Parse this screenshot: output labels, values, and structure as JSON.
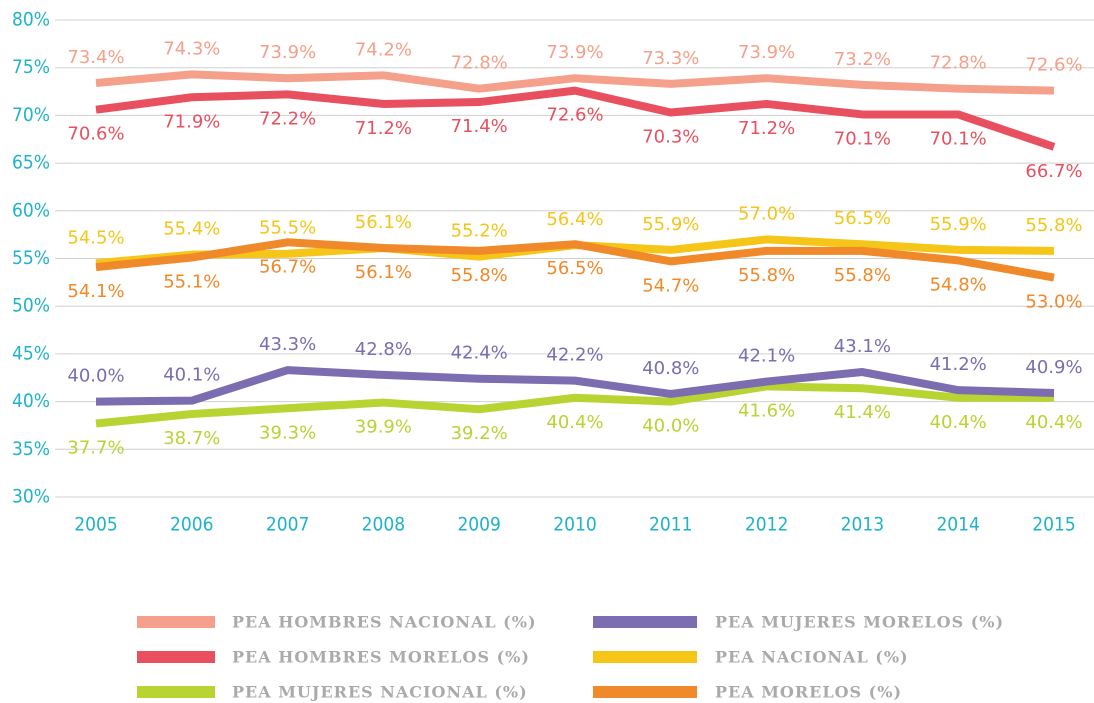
{
  "chart_data": {
    "type": "line",
    "categories": [
      "2005",
      "2006",
      "2007",
      "2008",
      "2009",
      "2010",
      "2011",
      "2012",
      "2013",
      "2014",
      "2015"
    ],
    "series": [
      {
        "name": "PEA HOMBRES NACIONAL (%)",
        "color": "#f4a08a",
        "values": [
          73.4,
          74.3,
          73.9,
          74.2,
          72.8,
          73.9,
          73.3,
          73.9,
          73.2,
          72.8,
          72.6
        ],
        "value_labels": [
          "73.4%",
          "74.3%",
          "73.9%",
          "74.2%",
          "72.8%",
          "73.9%",
          "73.3%",
          "73.9%",
          "73.2%",
          "72.8%",
          "72.6%"
        ]
      },
      {
        "name": "PEA HOMBRES MORELOS (%)",
        "color": "#e8505f",
        "values": [
          70.6,
          71.9,
          72.2,
          71.2,
          71.4,
          72.6,
          70.3,
          71.2,
          70.1,
          70.1,
          66.7
        ],
        "value_labels": [
          "70.6%",
          "71.9%",
          "72.2%",
          "71.2%",
          "71.4%",
          "72.6%",
          "70.3%",
          "71.2%",
          "70.1%",
          "70.1%",
          "66.7%"
        ]
      },
      {
        "name": "PEA MUJERES NACIONAL (%)",
        "color": "#b8d433",
        "values": [
          37.7,
          38.7,
          39.3,
          39.9,
          39.2,
          40.4,
          40.0,
          41.6,
          41.4,
          40.4,
          40.4
        ],
        "value_labels": [
          "37.7%",
          "38.7%",
          "39.3%",
          "39.9%",
          "39.2%",
          "40.4%",
          "40.0%",
          "41.6%",
          "41.4%",
          "40.4%",
          "40.4%"
        ]
      },
      {
        "name": "PEA MUJERES MORELOS (%)",
        "color": "#7b6db0",
        "values": [
          40.0,
          40.1,
          43.3,
          42.8,
          42.4,
          42.2,
          40.8,
          42.1,
          43.1,
          41.2,
          40.9
        ],
        "value_labels": [
          "40.0%",
          "40.1%",
          "43.3%",
          "42.8%",
          "42.4%",
          "42.2%",
          "40.8%",
          "42.1%",
          "43.1%",
          "41.2%",
          "40.9%"
        ]
      },
      {
        "name": "PEA NACIONAL (%)",
        "color": "#f5c518",
        "values": [
          54.5,
          55.4,
          55.5,
          56.1,
          55.2,
          56.4,
          55.9,
          57.0,
          56.5,
          55.9,
          55.8
        ],
        "value_labels": [
          "54.5%",
          "55.4%",
          "55.5%",
          "56.1%",
          "55.2%",
          "56.4%",
          "55.9%",
          "57.0%",
          "56.5%",
          "55.9%",
          "55.8%"
        ]
      },
      {
        "name": "PEA MORELOS (%)",
        "color": "#f0892a",
        "values": [
          54.1,
          55.1,
          56.7,
          56.1,
          55.8,
          56.5,
          54.7,
          55.8,
          55.8,
          54.8,
          53.0
        ],
        "value_labels": [
          "54.1%",
          "55.1%",
          "56.7%",
          "56.1%",
          "55.8%",
          "56.5%",
          "54.7%",
          "55.8%",
          "55.8%",
          "54.8%",
          "53.0%"
        ]
      }
    ],
    "ylim": [
      30,
      80
    ],
    "yticks": [
      {
        "value": 30,
        "label": "30%"
      },
      {
        "value": 35,
        "label": "35%"
      },
      {
        "value": 40,
        "label": "40%"
      },
      {
        "value": 45,
        "label": "45%"
      },
      {
        "value": 50,
        "label": "50%"
      },
      {
        "value": 55,
        "label": "55%"
      },
      {
        "value": 60,
        "label": "60%"
      },
      {
        "value": 65,
        "label": "65%"
      },
      {
        "value": 70,
        "label": "70%"
      },
      {
        "value": 75,
        "label": "75%"
      },
      {
        "value": 80,
        "label": "80%"
      }
    ],
    "grid": true
  }
}
